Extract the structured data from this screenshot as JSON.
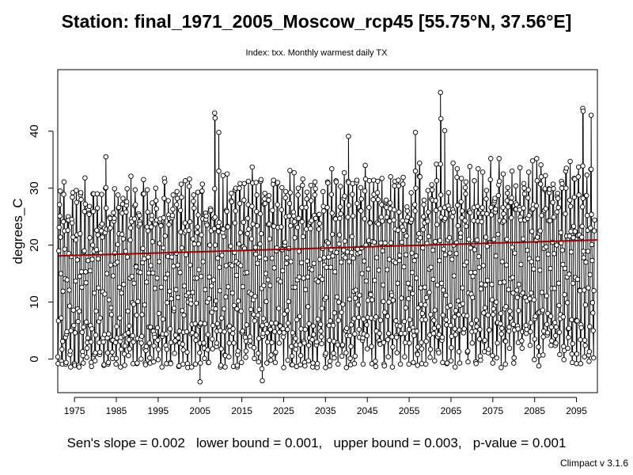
{
  "title": "Station: final_1971_2005_Moscow_rcp45 [55.75°N, 37.56°E]",
  "subtitle": "Index: txx. Monthly warmest daily TX",
  "stats": {
    "slope": "Sen's slope = 0.002",
    "lower": "lower bound = 0.001,",
    "upper": "upper bound = 0.003,",
    "pvalue": "p-value = 0.001"
  },
  "version": "Climpact v 3.1.6",
  "chart_data": {
    "type": "line",
    "title": "Station: final_1971_2005_Moscow_rcp45 [55.75°N, 37.56°E]",
    "subtitle": "Index: txx. Monthly warmest daily TX",
    "xlabel": "",
    "ylabel": "degrees_C",
    "xlim": [
      1971,
      2100
    ],
    "ylim": [
      -5,
      50
    ],
    "x_ticks": [
      "1975",
      "1985",
      "1995",
      "2005",
      "2015",
      "2025",
      "2035",
      "2045",
      "2055",
      "2065",
      "2075",
      "2085",
      "2095"
    ],
    "y_ticks": [
      "0",
      "10",
      "20",
      "30",
      "40"
    ],
    "series": [
      {
        "line_color": "#000000",
        "marker": "open-circle",
        "frequency": "monthly",
        "start_year": 1971,
        "annual_cycle_celsius": [
          -1.0,
          1.0,
          5.5,
          14.5,
          21.5,
          25.5,
          28.0,
          26.0,
          19.5,
          12.0,
          5.0,
          1.0
        ],
        "highlight_points": [
          {
            "year": 1982.5,
            "value": 35.5
          },
          {
            "year": 2008.5,
            "value": 43.2
          },
          {
            "year": 2008.6,
            "value": 42.3
          },
          {
            "year": 2009.5,
            "value": 39.8
          },
          {
            "year": 2040.5,
            "value": 39.1
          },
          {
            "year": 2056.5,
            "value": 39.8
          },
          {
            "year": 2062.5,
            "value": 46.8
          },
          {
            "year": 2062.6,
            "value": 42.2
          },
          {
            "year": 2063.5,
            "value": 40.1
          },
          {
            "year": 2096.5,
            "value": 44.0
          },
          {
            "year": 2096.6,
            "value": 43.5
          },
          {
            "year": 2098.5,
            "value": 42.8
          },
          {
            "year": 2005.0,
            "value": -4.0
          },
          {
            "year": 2005.1,
            "value": -0.7
          },
          {
            "year": 2019.9,
            "value": -3.8
          },
          {
            "year": 2019.8,
            "value": -1.7
          },
          {
            "year": 2013.9,
            "value": -1.4
          },
          {
            "year": 2058.0,
            "value": -0.8
          },
          {
            "year": 2057.0,
            "value": 0.8
          }
        ]
      }
    ],
    "trend_line": {
      "color": "#a00000",
      "y_at_start": 18.1,
      "y_at_end": 20.9,
      "slope_per_month": 0.002
    }
  }
}
